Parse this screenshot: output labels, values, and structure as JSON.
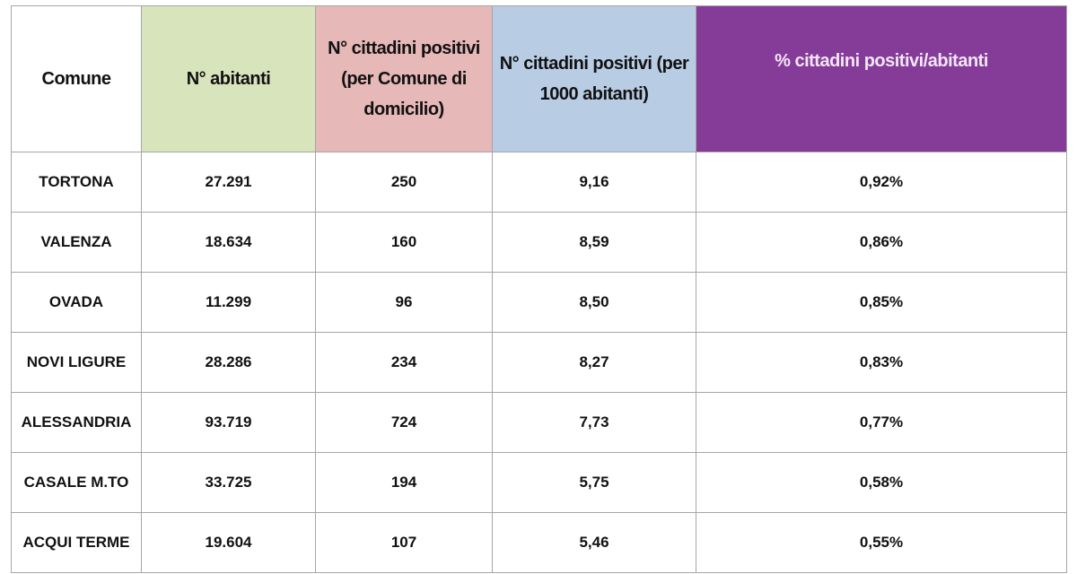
{
  "table": {
    "header": [
      "Comune",
      "N° abitanti",
      "N° cittadini positivi (per Comune di domicilio)",
      "N° cittadini positivi (per 1000 abitanti)",
      "% cittadini positivi/abitanti"
    ],
    "rows": [
      [
        "TORTONA",
        "27.291",
        "250",
        "9,16",
        "0,92%"
      ],
      [
        "VALENZA",
        "18.634",
        "160",
        "8,59",
        "0,86%"
      ],
      [
        "OVADA",
        "11.299",
        "96",
        "8,50",
        "0,85%"
      ],
      [
        "NOVI LIGURE",
        "28.286",
        "234",
        "8,27",
        "0,83%"
      ],
      [
        "ALESSANDRIA",
        "93.719",
        "724",
        "7,73",
        "0,77%"
      ],
      [
        "CASALE M.TO",
        "33.725",
        "194",
        "5,75",
        "0,58%"
      ],
      [
        "ACQUI TERME",
        "19.604",
        "107",
        "5,46",
        "0,55%"
      ]
    ]
  }
}
